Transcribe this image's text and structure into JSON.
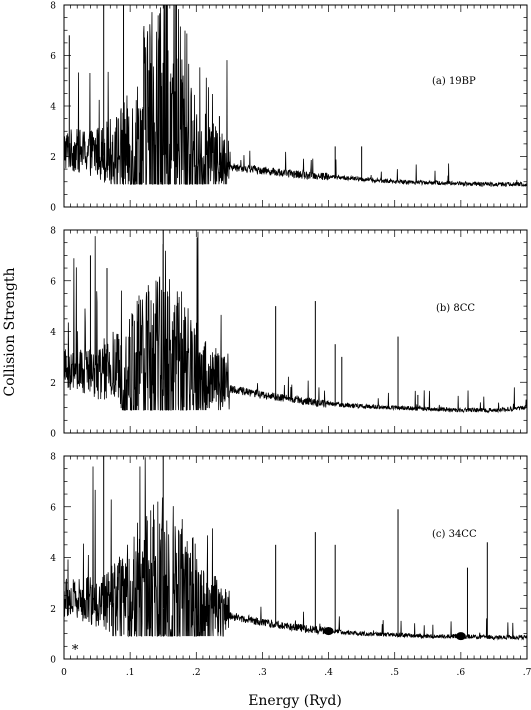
{
  "figure": {
    "ylabel": "Collision Strength",
    "xlabel": "Energy (Ryd)",
    "line_color": "#000000",
    "background": "#ffffff"
  },
  "chart_data": [
    {
      "type": "line",
      "title": "",
      "panel_label": "(a) 19BP",
      "xlim": [
        0,
        0.7
      ],
      "ylim": [
        0,
        8
      ],
      "yticks": [
        "0",
        "2",
        "4",
        "6",
        "8"
      ],
      "xticks": [],
      "grid": false,
      "series": [
        {
          "description": "dense resonance spectrum",
          "background_curve": {
            "x": [
              0,
              0.03,
              0.08,
              0.15,
              0.2,
              0.25,
              0.3,
              0.35,
              0.4,
              0.45,
              0.5,
              0.55,
              0.6,
              0.65,
              0.7
            ],
            "y": [
              2.2,
              2.1,
              2.0,
              1.95,
              1.8,
              1.6,
              1.45,
              1.3,
              1.2,
              1.1,
              1.0,
              0.97,
              0.93,
              0.9,
              0.9
            ]
          },
          "notable_peaks": [
            {
              "x": 0.008,
              "y": 6.8
            },
            {
              "x": 0.06,
              "y": 8.0
            },
            {
              "x": 0.09,
              "y": 8.0
            },
            {
              "x": 0.155,
              "y": 8.0
            },
            {
              "x": 0.17,
              "y": 8.0
            },
            {
              "x": 0.235,
              "y": 3.6
            },
            {
              "x": 0.41,
              "y": 2.4
            },
            {
              "x": 0.45,
              "y": 2.4
            }
          ]
        }
      ]
    },
    {
      "type": "line",
      "title": "",
      "panel_label": "(b) 8CC",
      "xlim": [
        0,
        0.7
      ],
      "ylim": [
        0,
        8
      ],
      "yticks": [
        "0",
        "2",
        "4",
        "6",
        "8"
      ],
      "xticks": [],
      "grid": false,
      "series": [
        {
          "description": "dense resonance spectrum",
          "background_curve": {
            "x": [
              0,
              0.03,
              0.08,
              0.15,
              0.2,
              0.25,
              0.3,
              0.35,
              0.4,
              0.45,
              0.5,
              0.55,
              0.6,
              0.65,
              0.7
            ],
            "y": [
              2.4,
              2.3,
              2.2,
              2.1,
              1.95,
              1.75,
              1.5,
              1.3,
              1.15,
              1.05,
              1.0,
              0.95,
              0.9,
              0.9,
              1.0
            ]
          },
          "notable_peaks": [
            {
              "x": 0.04,
              "y": 7.0
            },
            {
              "x": 0.065,
              "y": 6.5
            },
            {
              "x": 0.15,
              "y": 8.0
            },
            {
              "x": 0.32,
              "y": 5.0
            },
            {
              "x": 0.38,
              "y": 5.2
            },
            {
              "x": 0.41,
              "y": 3.5
            },
            {
              "x": 0.42,
              "y": 3.0
            },
            {
              "x": 0.505,
              "y": 3.8
            },
            {
              "x": 0.535,
              "y": 1.5
            }
          ]
        }
      ]
    },
    {
      "type": "line",
      "title": "",
      "panel_label": "(c) 34CC",
      "xlim": [
        0,
        0.7
      ],
      "ylim": [
        0,
        8
      ],
      "yticks": [
        "0",
        "2",
        "4",
        "6",
        "8"
      ],
      "xticks": [
        "0",
        ".1",
        ".2",
        ".3",
        ".4",
        ".5",
        ".6",
        ".7"
      ],
      "grid": false,
      "series": [
        {
          "description": "dense resonance spectrum",
          "background_curve": {
            "x": [
              0,
              0.03,
              0.08,
              0.15,
              0.2,
              0.25,
              0.3,
              0.35,
              0.4,
              0.45,
              0.5,
              0.55,
              0.6,
              0.65,
              0.7
            ],
            "y": [
              2.3,
              2.2,
              2.1,
              2.0,
              1.9,
              1.7,
              1.45,
              1.25,
              1.1,
              1.0,
              0.95,
              0.9,
              0.9,
              0.85,
              0.85
            ]
          },
          "notable_peaks": [
            {
              "x": 0.06,
              "y": 8.0
            },
            {
              "x": 0.15,
              "y": 8.0
            },
            {
              "x": 0.32,
              "y": 4.5
            },
            {
              "x": 0.38,
              "y": 5.0
            },
            {
              "x": 0.41,
              "y": 4.5
            },
            {
              "x": 0.505,
              "y": 5.9
            },
            {
              "x": 0.61,
              "y": 3.6
            },
            {
              "x": 0.64,
              "y": 4.6
            }
          ],
          "filled_blobs_x": [
            0.4,
            0.6
          ]
        }
      ],
      "marker": {
        "symbol": "*",
        "x": 0.012,
        "y": 0.4
      }
    }
  ]
}
